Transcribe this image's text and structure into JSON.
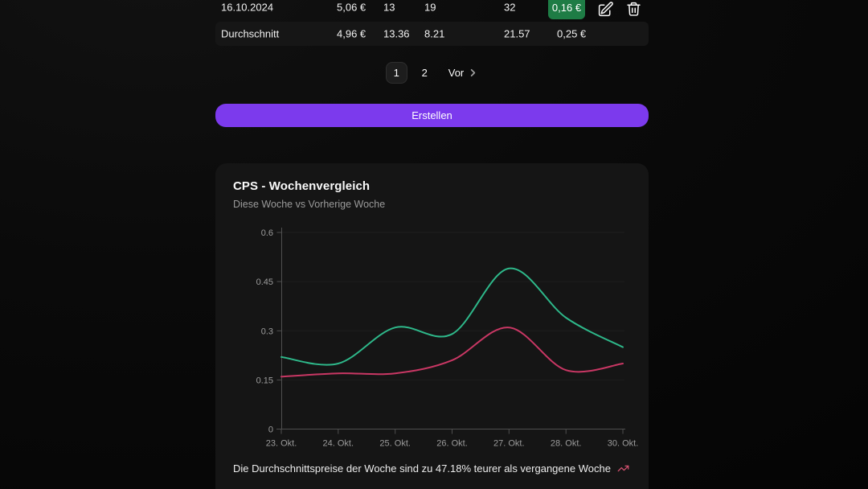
{
  "table": {
    "badge_color": "#1e7c45",
    "rows": [
      {
        "cells": [
          "16.10.2024",
          "5,06 €",
          "13",
          "19",
          "32"
        ],
        "badge": "0,16 €"
      },
      {
        "cells": [
          "Durchschnitt",
          "4,96 €",
          "13.36",
          "8.21",
          "21.57"
        ],
        "last": "0,25 €"
      }
    ]
  },
  "pagination": {
    "pages": [
      "1",
      "2"
    ],
    "next_label": "Vor"
  },
  "create_button": {
    "label": "Erstellen",
    "color": "#7c3aed"
  },
  "chart": {
    "title": "CPS - Wochenvergleich",
    "subtitle": "Diese Woche vs Vorherige Woche",
    "footer": "Die Durchschnittspreise der Woche sind zu 47.18% teurer als vergangene Woche",
    "trend_color": "#d0506e"
  },
  "chart_data": {
    "type": "line",
    "title": "CPS - Wochenvergleich",
    "xlabel": "",
    "ylabel": "",
    "categories": [
      "23. Okt.",
      "24. Okt.",
      "25. Okt.",
      "26. Okt.",
      "27. Okt.",
      "28. Okt.",
      "30. Okt."
    ],
    "series": [
      {
        "name": "Diese Woche",
        "color": "#2eb88a",
        "values": [
          0.22,
          0.2,
          0.31,
          0.29,
          0.49,
          0.34,
          0.25
        ]
      },
      {
        "name": "Vorherige Woche",
        "color": "#c93764",
        "values": [
          0.16,
          0.17,
          0.17,
          0.21,
          0.31,
          0.18,
          0.2
        ]
      }
    ],
    "ylim": [
      0,
      0.6
    ],
    "yticks": [
      0,
      0.15,
      0.3,
      0.45,
      0.6
    ],
    "ytick_labels": [
      "0",
      "0.15",
      "0.3",
      "0.45",
      "0.6"
    ],
    "grid": "horizontal",
    "legend": "none"
  }
}
